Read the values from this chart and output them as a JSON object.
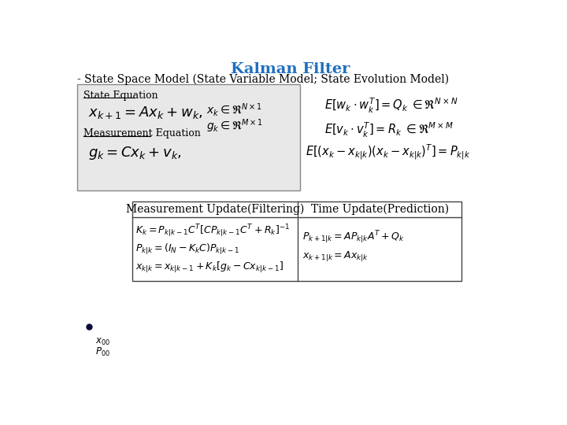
{
  "title": "Kalman Filter",
  "title_color": "#1F6FBF",
  "subtitle": "- State Space Model (State Variable Model; State Evolution Model)",
  "bg_color": "#FFFFFF",
  "box_bg_color": "#E8E8E8",
  "box_border_color": "#888888",
  "table_border_color": "#444444",
  "text_color": "#000000",
  "state_eq_label": "State Equation",
  "meas_eq_label": "Measurement Equation",
  "table_col1_header": "Measurement Update(Filtering)",
  "table_col2_header": "Time Update(Prediction)"
}
